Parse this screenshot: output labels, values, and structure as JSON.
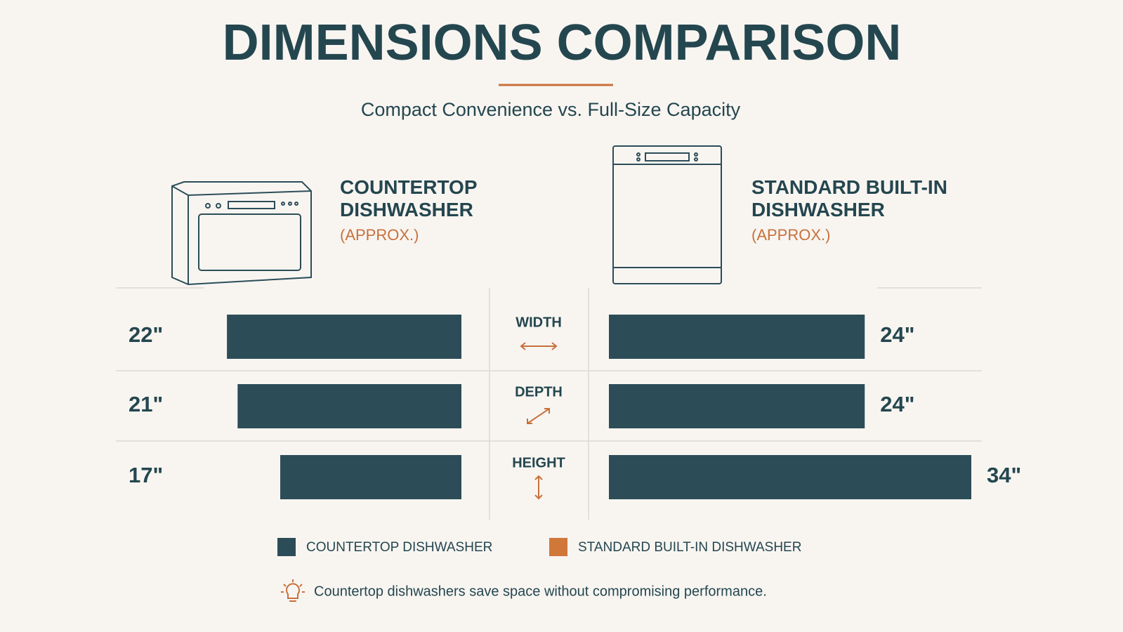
{
  "chart_data": {
    "type": "bar",
    "title": "DIMENSIONS COMPARISON",
    "subtitle": "Compact Convenience vs. Full-Size Capacity",
    "categories": [
      "WIDTH",
      "DEPTH",
      "HEIGHT"
    ],
    "bar_color": "#2c4d58",
    "series": [
      {
        "name": "COUNTERTOP DISHWASHER",
        "heading": "COUNTERTOP DISHWASHER",
        "note": "(APPROX.)",
        "color": "#2c4d58",
        "values": [
          22,
          21,
          17
        ],
        "value_labels": [
          "22\"",
          "21\"",
          "17\""
        ]
      },
      {
        "name": "STANDARD BUILT-IN DISHWASHER",
        "heading": "STANDARD BUILT-IN DISHWASHER",
        "note": "(APPROX.)",
        "color": "#d0773a",
        "values": [
          24,
          24,
          34
        ],
        "value_labels": [
          "24\"",
          "24\"",
          "34\""
        ]
      }
    ],
    "footnote": "Countertop dishwashers save space without compromising performance."
  }
}
